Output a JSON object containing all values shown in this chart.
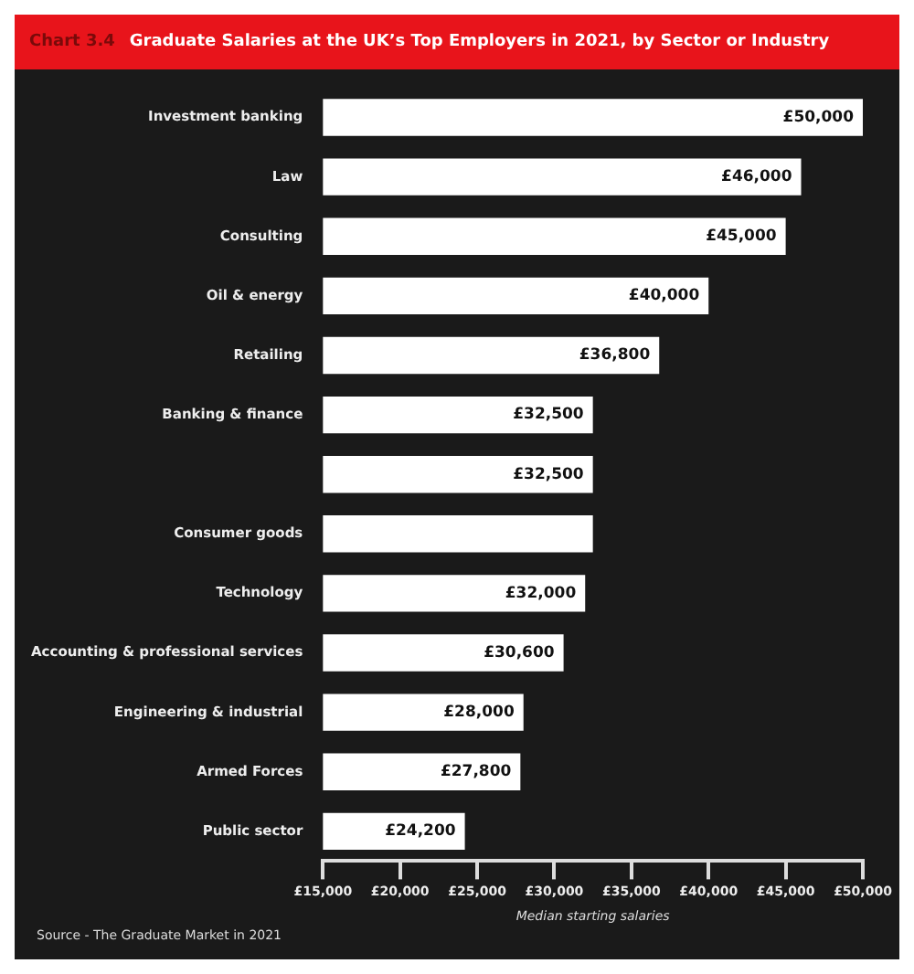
{
  "chart_data": {
    "type": "bar",
    "orientation": "horizontal",
    "title": "Graduate Salaries at the UK’s Top Employers in 2021, by Sector or Industry",
    "annotations": [
      "Chart 3.4",
      "Source - The Graduate Market in 2021"
    ],
    "xlabel": "Median starting salaries",
    "categories": [
      "Investment banking",
      "Law",
      "Consulting",
      "Oil & energy",
      "Retailing",
      "Banking & finance",
      null,
      "Consumer goods",
      "Technology",
      "Accounting & professional services",
      "Engineering & industrial",
      "Armed Forces",
      "Public sector"
    ],
    "values": [
      50000,
      46000,
      45000,
      40000,
      36800,
      32500,
      32500,
      32500,
      32000,
      30600,
      28000,
      27800,
      24200
    ],
    "value_labels": [
      "£50,000",
      "£46,000",
      "£45,000",
      "£40,000",
      "£36,800",
      "£32,500",
      "£32,500",
      null,
      "£32,000",
      "£30,600",
      "£28,000",
      "£27,800",
      "£24,200"
    ],
    "color": "#ffffff",
    "xlim": [
      15000,
      50000
    ],
    "xticks": [
      {
        "value": 15000,
        "label": "£15,000"
      },
      {
        "value": 20000,
        "label": "£20,000"
      },
      {
        "value": 25000,
        "label": "£25,000"
      },
      {
        "value": 30000,
        "label": "£30,000"
      },
      {
        "value": 35000,
        "label": "£35,000"
      },
      {
        "value": 40000,
        "label": "£40,000"
      },
      {
        "value": 45000,
        "label": "£45,000"
      },
      {
        "value": 50000,
        "label": "£50,000"
      }
    ],
    "grid": false,
    "legend": false
  }
}
